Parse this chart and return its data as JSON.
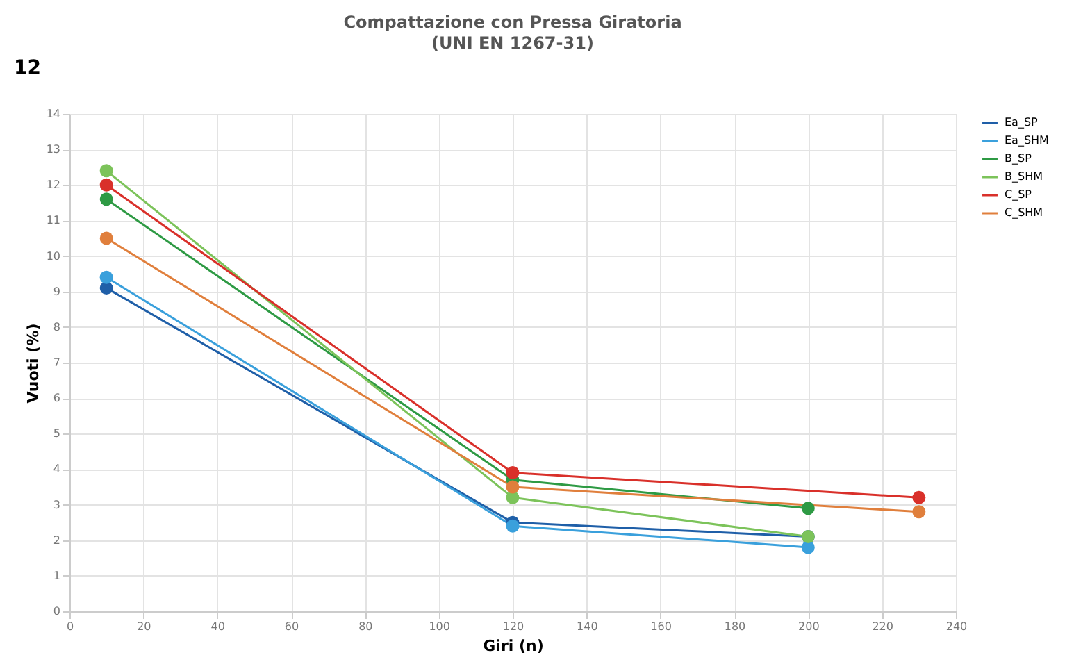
{
  "chart_data": {
    "type": "line",
    "title": "Compattazione con Pressa Giratoria",
    "subtitle": "(UNI EN 1267-31)",
    "xlabel": "Giri (n)",
    "ylabel": "Vuoti (%)",
    "annotations": [
      "12"
    ],
    "series": [
      {
        "name": "Ea_SP",
        "color": "#1f5fa8",
        "x": [
          10,
          120,
          200
        ],
        "values": [
          9.1,
          2.5,
          2.1
        ]
      },
      {
        "name": "Ea_SHM",
        "color": "#3aa0dc",
        "x": [
          10,
          120,
          200
        ],
        "values": [
          9.4,
          2.4,
          1.8
        ]
      },
      {
        "name": "B_SP",
        "color": "#2e9a44",
        "x": [
          10,
          120,
          200
        ],
        "values": [
          11.6,
          3.7,
          2.9
        ]
      },
      {
        "name": "B_SHM",
        "color": "#7cc35a",
        "x": [
          10,
          120,
          200
        ],
        "values": [
          12.4,
          3.2,
          2.1
        ]
      },
      {
        "name": "C_SP",
        "color": "#d9302a",
        "x": [
          10,
          120,
          230
        ],
        "values": [
          12.0,
          3.9,
          3.2
        ]
      },
      {
        "name": "C_SHM",
        "color": "#e07f3c",
        "x": [
          10,
          120,
          230
        ],
        "values": [
          10.5,
          3.5,
          2.8
        ]
      }
    ],
    "xlim": [
      0,
      240
    ],
    "xticks": [
      0,
      20,
      40,
      60,
      80,
      100,
      120,
      140,
      160,
      180,
      200,
      220,
      240
    ],
    "ylim": [
      0,
      14
    ],
    "yticks": [
      0,
      1,
      2,
      3,
      4,
      5,
      6,
      7,
      8,
      9,
      10,
      11,
      12,
      13,
      14
    ],
    "grid": true,
    "legend": "right",
    "marker": "circle",
    "line_style": "solid"
  }
}
